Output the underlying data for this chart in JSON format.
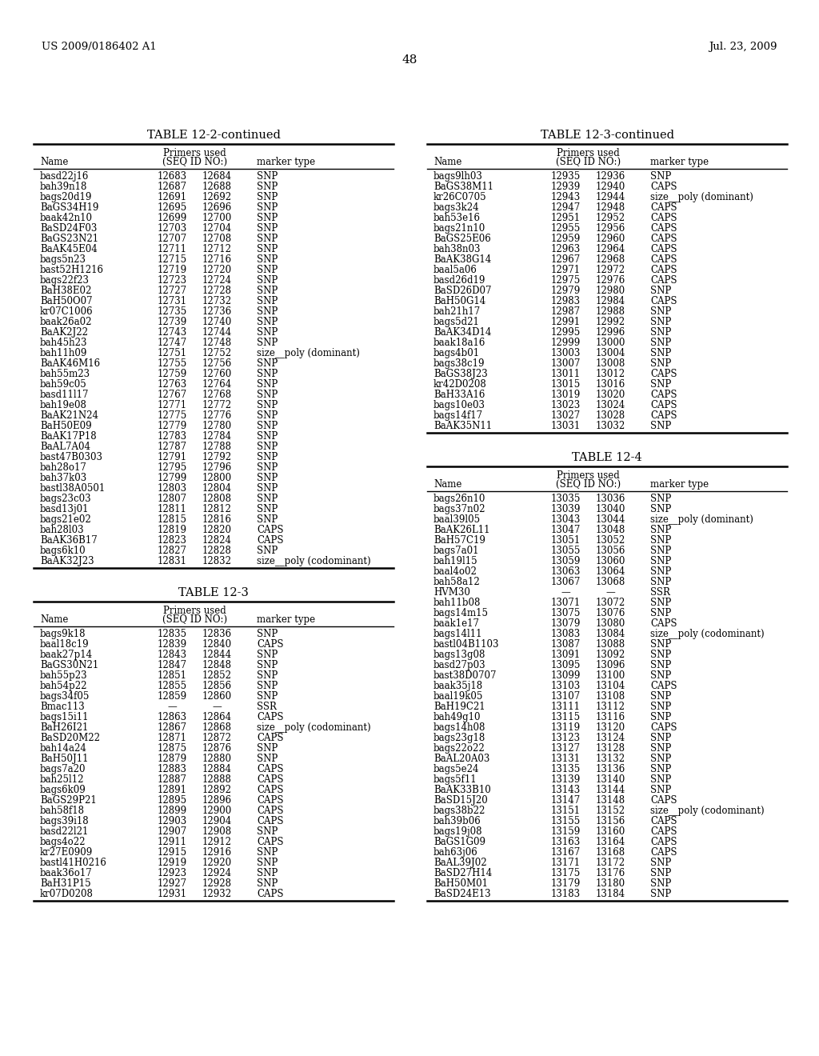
{
  "header_left": "US 2009/0186402 A1",
  "header_right": "Jul. 23, 2009",
  "page_number": "48",
  "table1_title": "TABLE 12-2-continued",
  "table1_data": [
    [
      "basd22j16",
      "12683",
      "12684",
      "SNP"
    ],
    [
      "bah39n18",
      "12687",
      "12688",
      "SNP"
    ],
    [
      "bags20d19",
      "12691",
      "12692",
      "SNP"
    ],
    [
      "BaGS34H19",
      "12695",
      "12696",
      "SNP"
    ],
    [
      "baak42n10",
      "12699",
      "12700",
      "SNP"
    ],
    [
      "BaSD24F03",
      "12703",
      "12704",
      "SNP"
    ],
    [
      "BaGS23N21",
      "12707",
      "12708",
      "SNP"
    ],
    [
      "BaAK45E04",
      "12711",
      "12712",
      "SNP"
    ],
    [
      "bags5n23",
      "12715",
      "12716",
      "SNP"
    ],
    [
      "bast52H1216",
      "12719",
      "12720",
      "SNP"
    ],
    [
      "bags22f23",
      "12723",
      "12724",
      "SNP"
    ],
    [
      "BaH38E02",
      "12727",
      "12728",
      "SNP"
    ],
    [
      "BaH50O07",
      "12731",
      "12732",
      "SNP"
    ],
    [
      "kr07C1006",
      "12735",
      "12736",
      "SNP"
    ],
    [
      "baak26a02",
      "12739",
      "12740",
      "SNP"
    ],
    [
      "BaAK2J22",
      "12743",
      "12744",
      "SNP"
    ],
    [
      "bah45h23",
      "12747",
      "12748",
      "SNP"
    ],
    [
      "bah11h09",
      "12751",
      "12752",
      "size__poly (dominant)"
    ],
    [
      "BaAK46M16",
      "12755",
      "12756",
      "SNP"
    ],
    [
      "bah55m23",
      "12759",
      "12760",
      "SNP"
    ],
    [
      "bah59c05",
      "12763",
      "12764",
      "SNP"
    ],
    [
      "basd11l17",
      "12767",
      "12768",
      "SNP"
    ],
    [
      "bah19e08",
      "12771",
      "12772",
      "SNP"
    ],
    [
      "BaAK21N24",
      "12775",
      "12776",
      "SNP"
    ],
    [
      "BaH50E09",
      "12779",
      "12780",
      "SNP"
    ],
    [
      "BaAK17P18",
      "12783",
      "12784",
      "SNP"
    ],
    [
      "BaAL7A04",
      "12787",
      "12788",
      "SNP"
    ],
    [
      "bast47B0303",
      "12791",
      "12792",
      "SNP"
    ],
    [
      "bah28o17",
      "12795",
      "12796",
      "SNP"
    ],
    [
      "bah37k03",
      "12799",
      "12800",
      "SNP"
    ],
    [
      "bastl38A0501",
      "12803",
      "12804",
      "SNP"
    ],
    [
      "bags23c03",
      "12807",
      "12808",
      "SNP"
    ],
    [
      "basd13j01",
      "12811",
      "12812",
      "SNP"
    ],
    [
      "bags21e02",
      "12815",
      "12816",
      "SNP"
    ],
    [
      "bah28l03",
      "12819",
      "12820",
      "CAPS"
    ],
    [
      "BaAK36B17",
      "12823",
      "12824",
      "CAPS"
    ],
    [
      "bags6k10",
      "12827",
      "12828",
      "SNP"
    ],
    [
      "BaAK32J23",
      "12831",
      "12832",
      "size__poly (codominant)"
    ]
  ],
  "table2_title": "TABLE 12-3",
  "table2_data": [
    [
      "bags9k18",
      "12835",
      "12836",
      "SNP"
    ],
    [
      "baal18c19",
      "12839",
      "12840",
      "CAPS"
    ],
    [
      "baak27p14",
      "12843",
      "12844",
      "SNP"
    ],
    [
      "BaGS30N21",
      "12847",
      "12848",
      "SNP"
    ],
    [
      "bah55p23",
      "12851",
      "12852",
      "SNP"
    ],
    [
      "bah54p22",
      "12855",
      "12856",
      "SNP"
    ],
    [
      "bags34f05",
      "12859",
      "12860",
      "SNP"
    ],
    [
      "Bmac113",
      "—",
      "—",
      "SSR"
    ],
    [
      "bags15i11",
      "12863",
      "12864",
      "CAPS"
    ],
    [
      "BaH26I21",
      "12867",
      "12868",
      "size__poly (codominant)"
    ],
    [
      "BaSD20M22",
      "12871",
      "12872",
      "CAPS"
    ],
    [
      "bah14a24",
      "12875",
      "12876",
      "SNP"
    ],
    [
      "BaH50J11",
      "12879",
      "12880",
      "SNP"
    ],
    [
      "bags7a20",
      "12883",
      "12884",
      "CAPS"
    ],
    [
      "bah25l12",
      "12887",
      "12888",
      "CAPS"
    ],
    [
      "bags6k09",
      "12891",
      "12892",
      "CAPS"
    ],
    [
      "BaGS29P21",
      "12895",
      "12896",
      "CAPS"
    ],
    [
      "bah58f18",
      "12899",
      "12900",
      "CAPS"
    ],
    [
      "bags39i18",
      "12903",
      "12904",
      "CAPS"
    ],
    [
      "basd22l21",
      "12907",
      "12908",
      "SNP"
    ],
    [
      "bags4o22",
      "12911",
      "12912",
      "CAPS"
    ],
    [
      "kr27E0909",
      "12915",
      "12916",
      "SNP"
    ],
    [
      "bastl41H0216",
      "12919",
      "12920",
      "SNP"
    ],
    [
      "baak36o17",
      "12923",
      "12924",
      "SNP"
    ],
    [
      "BaH31P15",
      "12927",
      "12928",
      "SNP"
    ],
    [
      "kr07D0208",
      "12931",
      "12932",
      "CAPS"
    ]
  ],
  "table3_title": "TABLE 12-3-continued",
  "table3_data": [
    [
      "bags9lh03",
      "12935",
      "12936",
      "SNP"
    ],
    [
      "BaGS38M11",
      "12939",
      "12940",
      "CAPS"
    ],
    [
      "kr26C0705",
      "12943",
      "12944",
      "size__poly (dominant)"
    ],
    [
      "bags3k24",
      "12947",
      "12948",
      "CAPS"
    ],
    [
      "bah53e16",
      "12951",
      "12952",
      "CAPS"
    ],
    [
      "bags21n10",
      "12955",
      "12956",
      "CAPS"
    ],
    [
      "BaGS25E06",
      "12959",
      "12960",
      "CAPS"
    ],
    [
      "bah38n03",
      "12963",
      "12964",
      "CAPS"
    ],
    [
      "BaAK38G14",
      "12967",
      "12968",
      "CAPS"
    ],
    [
      "baal5a06",
      "12971",
      "12972",
      "CAPS"
    ],
    [
      "basd26d19",
      "12975",
      "12976",
      "CAPS"
    ],
    [
      "BaSD26D07",
      "12979",
      "12980",
      "SNP"
    ],
    [
      "BaH50G14",
      "12983",
      "12984",
      "CAPS"
    ],
    [
      "bah21h17",
      "12987",
      "12988",
      "SNP"
    ],
    [
      "bags5d21",
      "12991",
      "12992",
      "SNP"
    ],
    [
      "BaAK34D14",
      "12995",
      "12996",
      "SNP"
    ],
    [
      "baak18a16",
      "12999",
      "13000",
      "SNP"
    ],
    [
      "bags4b01",
      "13003",
      "13004",
      "SNP"
    ],
    [
      "bags38c19",
      "13007",
      "13008",
      "SNP"
    ],
    [
      "BaGS38J23",
      "13011",
      "13012",
      "CAPS"
    ],
    [
      "kr42D0208",
      "13015",
      "13016",
      "SNP"
    ],
    [
      "BaH33A16",
      "13019",
      "13020",
      "CAPS"
    ],
    [
      "bags10e03",
      "13023",
      "13024",
      "CAPS"
    ],
    [
      "bags14f17",
      "13027",
      "13028",
      "CAPS"
    ],
    [
      "BaAK35N11",
      "13031",
      "13032",
      "SNP"
    ]
  ],
  "table4_title": "TABLE 12-4",
  "table4_data": [
    [
      "bags26n10",
      "13035",
      "13036",
      "SNP"
    ],
    [
      "bags37n02",
      "13039",
      "13040",
      "SNP"
    ],
    [
      "baal39l05",
      "13043",
      "13044",
      "size__poly (dominant)"
    ],
    [
      "BaAK26L11",
      "13047",
      "13048",
      "SNP"
    ],
    [
      "BaH57C19",
      "13051",
      "13052",
      "SNP"
    ],
    [
      "bags7a01",
      "13055",
      "13056",
      "SNP"
    ],
    [
      "bah19l15",
      "13059",
      "13060",
      "SNP"
    ],
    [
      "baal4o02",
      "13063",
      "13064",
      "SNP"
    ],
    [
      "bah58a12",
      "13067",
      "13068",
      "SNP"
    ],
    [
      "HVM30",
      "—",
      "—",
      "SSR"
    ],
    [
      "bah11b08",
      "13071",
      "13072",
      "SNP"
    ],
    [
      "bags14m15",
      "13075",
      "13076",
      "SNP"
    ],
    [
      "baak1e17",
      "13079",
      "13080",
      "CAPS"
    ],
    [
      "bags14l11",
      "13083",
      "13084",
      "size__poly (codominant)"
    ],
    [
      "bastl04B1103",
      "13087",
      "13088",
      "SNP"
    ],
    [
      "bags13g08",
      "13091",
      "13092",
      "SNP"
    ],
    [
      "basd27p03",
      "13095",
      "13096",
      "SNP"
    ],
    [
      "bast38D0707",
      "13099",
      "13100",
      "SNP"
    ],
    [
      "baak35j18",
      "13103",
      "13104",
      "CAPS"
    ],
    [
      "baal19k05",
      "13107",
      "13108",
      "SNP"
    ],
    [
      "BaH19C21",
      "13111",
      "13112",
      "SNP"
    ],
    [
      "bah49g10",
      "13115",
      "13116",
      "SNP"
    ],
    [
      "bags14h08",
      "13119",
      "13120",
      "CAPS"
    ],
    [
      "bags23g18",
      "13123",
      "13124",
      "SNP"
    ],
    [
      "bags22o22",
      "13127",
      "13128",
      "SNP"
    ],
    [
      "BaAL20A03",
      "13131",
      "13132",
      "SNP"
    ],
    [
      "bags5e24",
      "13135",
      "13136",
      "SNP"
    ],
    [
      "bags5f11",
      "13139",
      "13140",
      "SNP"
    ],
    [
      "BaAK33B10",
      "13143",
      "13144",
      "SNP"
    ],
    [
      "BaSD15J20",
      "13147",
      "13148",
      "CAPS"
    ],
    [
      "bags38b22",
      "13151",
      "13152",
      "size__poly (codominant)"
    ],
    [
      "bah39b06",
      "13155",
      "13156",
      "CAPS"
    ],
    [
      "bags19j08",
      "13159",
      "13160",
      "CAPS"
    ],
    [
      "BaGS1G09",
      "13163",
      "13164",
      "CAPS"
    ],
    [
      "bah63j06",
      "13167",
      "13168",
      "CAPS"
    ],
    [
      "BaAL39J02",
      "13171",
      "13172",
      "SNP"
    ],
    [
      "BaSD27H14",
      "13175",
      "13176",
      "SNP"
    ],
    [
      "BaH50M01",
      "13179",
      "13180",
      "SNP"
    ],
    [
      "BaSD24E13",
      "13183",
      "13184",
      "SNP"
    ]
  ]
}
